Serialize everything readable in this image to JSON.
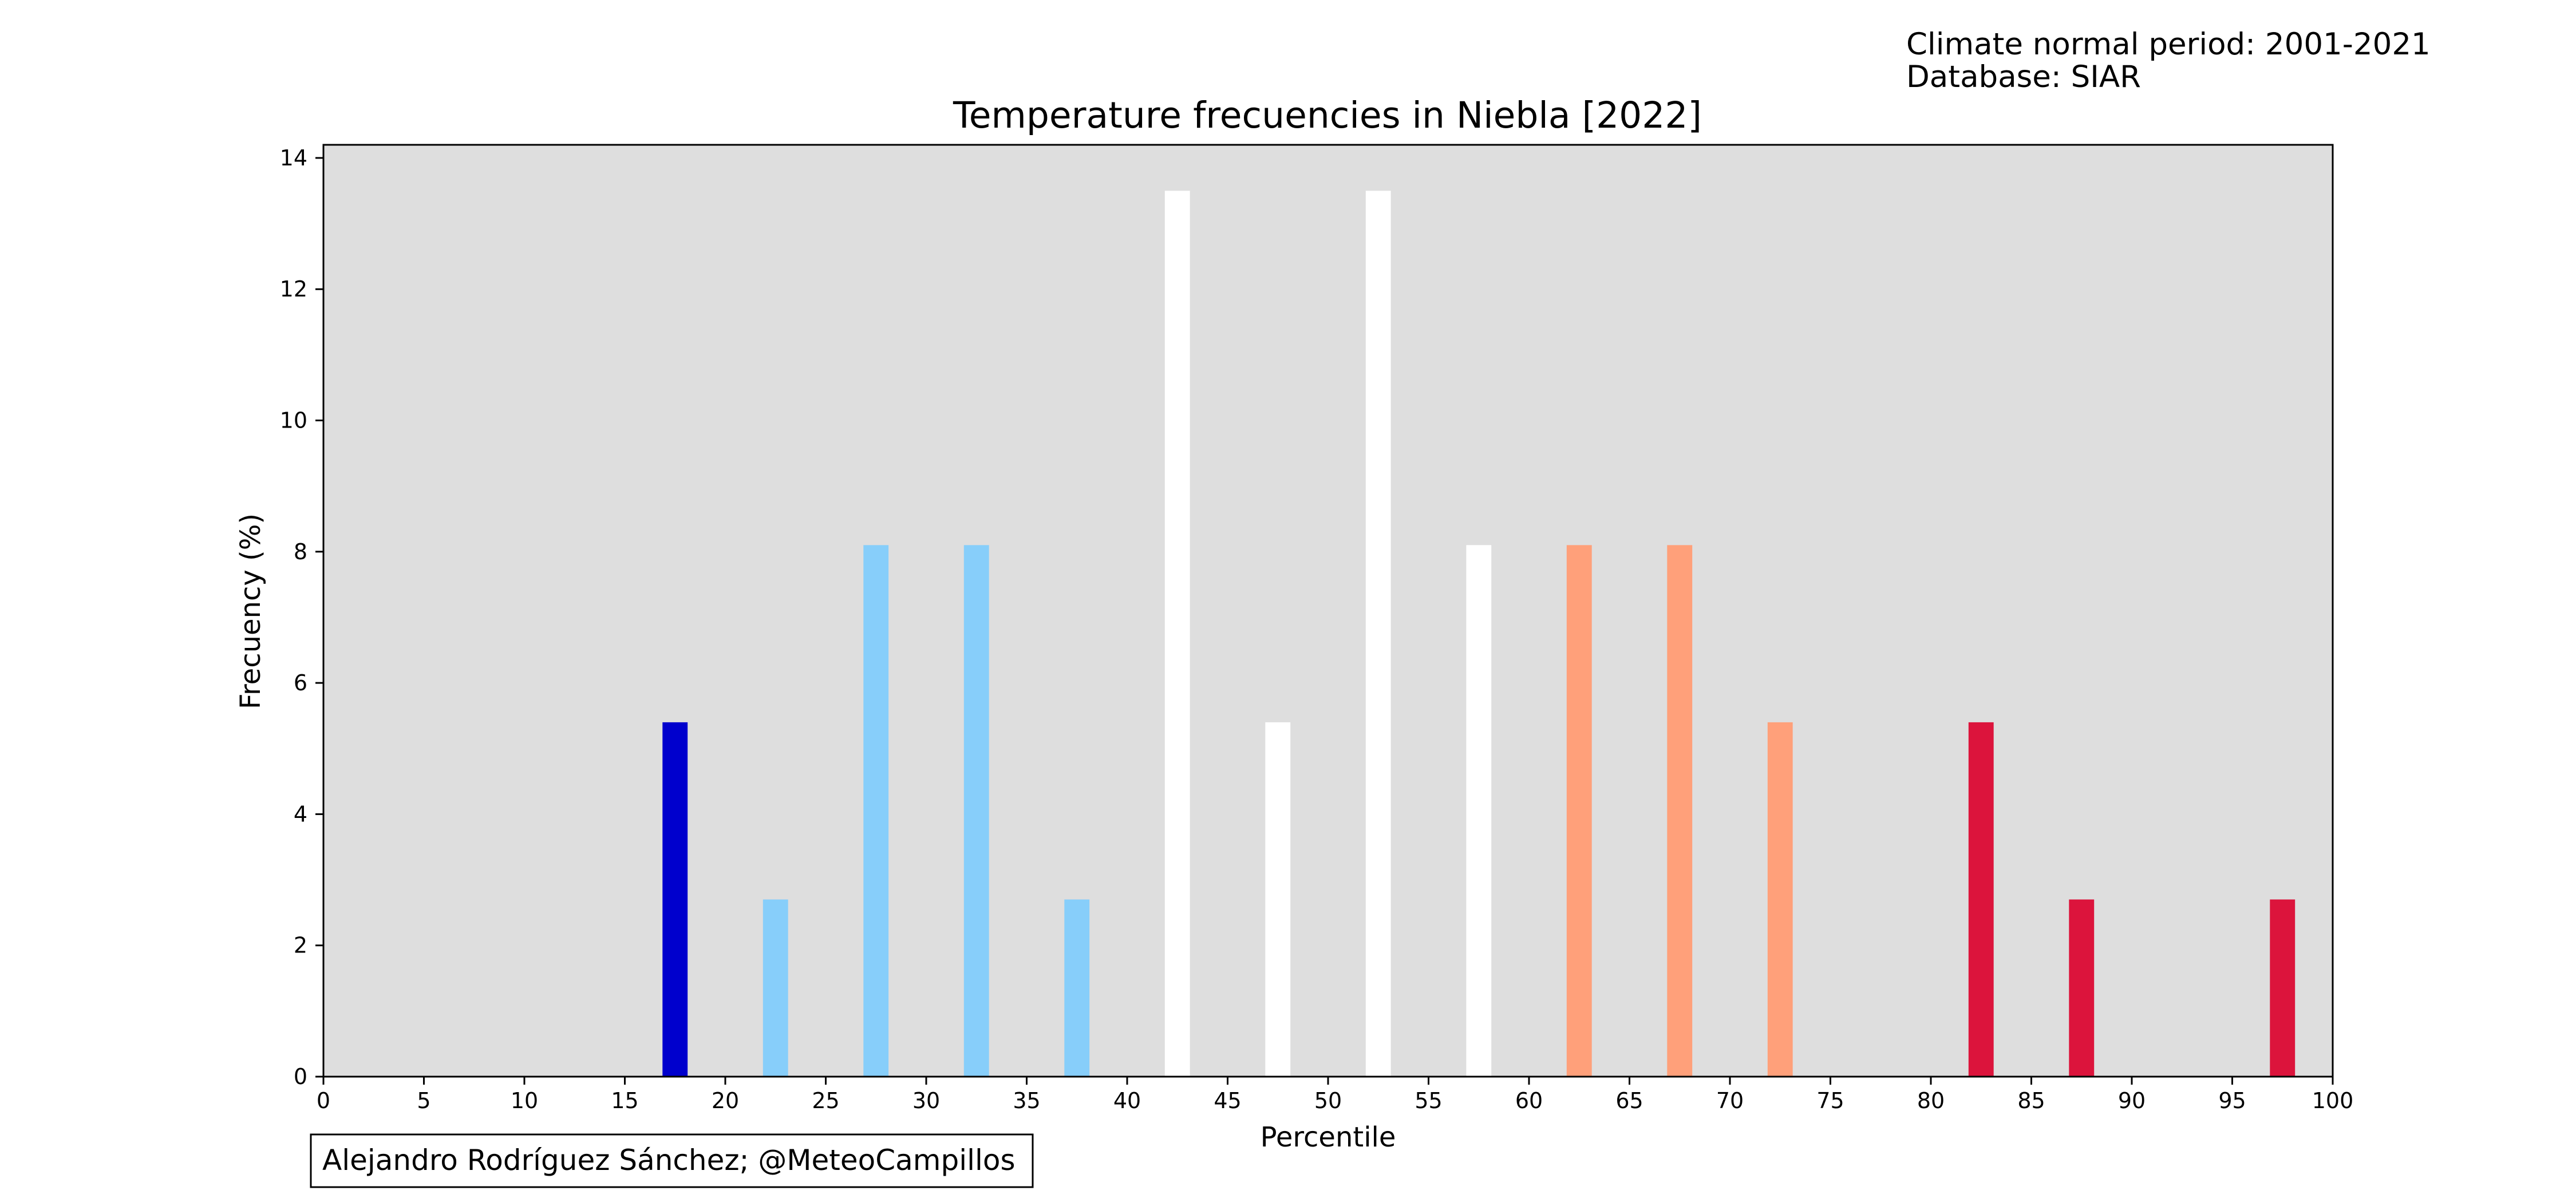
{
  "meta": {
    "normal_period": "Climate normal period: 2001-2021",
    "database": "Database: SIAR"
  },
  "credit": "Alejandro Rodríguez Sánchez; @MeteoCampillos",
  "chart_data": {
    "type": "bar",
    "title": "Temperature frecuencies in Niebla [2022]",
    "xlabel": "Percentile",
    "ylabel": "Frecuency (%)",
    "xlim": [
      0,
      100
    ],
    "ylim": [
      0,
      14.2
    ],
    "xticks": [
      0,
      5,
      10,
      15,
      20,
      25,
      30,
      35,
      40,
      45,
      50,
      55,
      60,
      65,
      70,
      75,
      80,
      85,
      90,
      95,
      100
    ],
    "yticks": [
      0,
      2,
      4,
      6,
      8,
      10,
      12,
      14
    ],
    "grid": false,
    "background": "#dedede",
    "bar_width": 1.25,
    "bars": [
      {
        "x": 17.5,
        "value": 5.4,
        "color": "#0000cd"
      },
      {
        "x": 22.5,
        "value": 2.7,
        "color": "#87cefa"
      },
      {
        "x": 27.5,
        "value": 8.1,
        "color": "#87cefa"
      },
      {
        "x": 32.5,
        "value": 8.1,
        "color": "#87cefa"
      },
      {
        "x": 37.5,
        "value": 2.7,
        "color": "#87cefa"
      },
      {
        "x": 42.5,
        "value": 13.5,
        "color": "#ffffff"
      },
      {
        "x": 47.5,
        "value": 5.4,
        "color": "#ffffff"
      },
      {
        "x": 52.5,
        "value": 13.5,
        "color": "#ffffff"
      },
      {
        "x": 57.5,
        "value": 8.1,
        "color": "#ffffff"
      },
      {
        "x": 62.5,
        "value": 8.1,
        "color": "#ffa07a"
      },
      {
        "x": 67.5,
        "value": 8.1,
        "color": "#ffa07a"
      },
      {
        "x": 72.5,
        "value": 5.4,
        "color": "#ffa07a"
      },
      {
        "x": 82.5,
        "value": 5.4,
        "color": "#dc143c"
      },
      {
        "x": 87.5,
        "value": 2.7,
        "color": "#dc143c"
      },
      {
        "x": 97.5,
        "value": 2.7,
        "color": "#dc143c"
      }
    ]
  }
}
